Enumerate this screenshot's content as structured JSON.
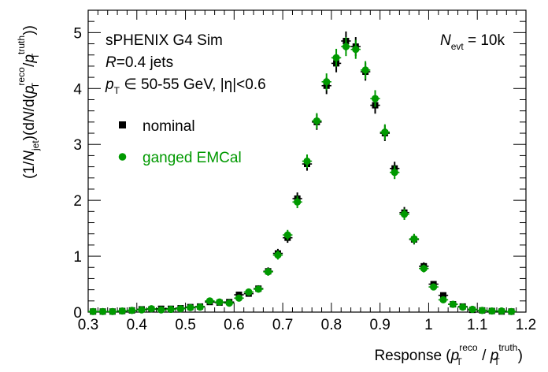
{
  "chart_data": {
    "type": "scatter",
    "title": "",
    "xlabel": "Response (p_T^reco / p_T^truth)",
    "ylabel": "(1/N_jet)(dN/d(p_T^reco/p_T^truth))",
    "xlim": [
      0.3,
      1.2
    ],
    "ylim": [
      0,
      5.4
    ],
    "x_ticks": [
      "0.3",
      "0.4",
      "0.5",
      "0.6",
      "0.7",
      "0.8",
      "0.9",
      "1",
      "1.1",
      "1.2"
    ],
    "y_ticks": [
      "0",
      "1",
      "2",
      "3",
      "4",
      "5"
    ],
    "grid": false,
    "legend_position": "upper-left",
    "annotations": {
      "line1": "sPHENIX G4 Sim",
      "line2_var": "R",
      "line2_rest": "=0.4 jets",
      "line3_var": "p",
      "line3_sub": "T",
      "line3_rest": " ∈ 50-55 GeV, |η|<0.6",
      "nevt_var": "N",
      "nevt_sub": "evt",
      "nevt_rest": " = 10k"
    },
    "axis_text": {
      "xlabel_main": "Response (",
      "xlabel_p1": "p",
      "xlabel_sub1": "T",
      "xlabel_sup1": "reco",
      "xlabel_mid": " / ",
      "xlabel_p2": "p",
      "xlabel_sub2": "T",
      "xlabel_sup2": "truth",
      "xlabel_end": ")",
      "ylabel_a": "(1/",
      "ylabel_N": "N",
      "ylabel_jet": "jet",
      "ylabel_b": ")(d",
      "ylabel_N2": "N",
      "ylabel_c": "/d(",
      "ylabel_p1": "p",
      "ylabel_sup1": "reco",
      "ylabel_sub1": "T",
      "ylabel_d": "/",
      "ylabel_p2": "p",
      "ylabel_sup2": "truth",
      "ylabel_sub2": "T",
      "ylabel_e": "))"
    },
    "series": [
      {
        "name": "nominal",
        "color": "#000000",
        "marker": "square",
        "x": [
          0.31,
          0.33,
          0.35,
          0.37,
          0.39,
          0.41,
          0.43,
          0.45,
          0.47,
          0.49,
          0.51,
          0.53,
          0.55,
          0.57,
          0.59,
          0.61,
          0.63,
          0.65,
          0.67,
          0.69,
          0.71,
          0.73,
          0.75,
          0.77,
          0.79,
          0.81,
          0.83,
          0.85,
          0.87,
          0.89,
          0.91,
          0.93,
          0.95,
          0.97,
          0.99,
          1.01,
          1.03,
          1.05,
          1.07,
          1.09,
          1.11,
          1.13,
          1.15,
          1.17
        ],
        "y": [
          0.01,
          0.01,
          0.01,
          0.02,
          0.03,
          0.05,
          0.05,
          0.06,
          0.06,
          0.07,
          0.09,
          0.1,
          0.18,
          0.17,
          0.18,
          0.31,
          0.33,
          0.42,
          0.73,
          1.05,
          1.33,
          2.03,
          2.65,
          3.4,
          4.05,
          4.45,
          4.85,
          4.75,
          4.3,
          3.7,
          3.2,
          2.57,
          1.78,
          1.3,
          0.82,
          0.5,
          0.3,
          0.14,
          0.1,
          0.04,
          0.03,
          0.02,
          0.01,
          0.01
        ],
        "err": [
          0.02,
          0.02,
          0.02,
          0.02,
          0.02,
          0.03,
          0.03,
          0.03,
          0.03,
          0.03,
          0.03,
          0.04,
          0.04,
          0.04,
          0.04,
          0.05,
          0.05,
          0.06,
          0.07,
          0.08,
          0.09,
          0.11,
          0.12,
          0.14,
          0.15,
          0.16,
          0.17,
          0.17,
          0.16,
          0.15,
          0.14,
          0.12,
          0.1,
          0.09,
          0.07,
          0.05,
          0.04,
          0.03,
          0.03,
          0.02,
          0.02,
          0.02,
          0.02,
          0.02
        ]
      },
      {
        "name": "ganged EMCal",
        "color": "#009900",
        "marker": "circle",
        "x": [
          0.31,
          0.33,
          0.35,
          0.37,
          0.39,
          0.41,
          0.43,
          0.45,
          0.47,
          0.49,
          0.51,
          0.53,
          0.55,
          0.57,
          0.59,
          0.61,
          0.63,
          0.65,
          0.67,
          0.69,
          0.71,
          0.73,
          0.75,
          0.77,
          0.79,
          0.81,
          0.83,
          0.85,
          0.87,
          0.89,
          0.91,
          0.93,
          0.95,
          0.97,
          0.99,
          1.01,
          1.03,
          1.05,
          1.07,
          1.09,
          1.11,
          1.13,
          1.15,
          1.17
        ],
        "y": [
          0.01,
          0.01,
          0.01,
          0.02,
          0.03,
          0.04,
          0.06,
          0.04,
          0.05,
          0.06,
          0.08,
          0.09,
          0.2,
          0.18,
          0.16,
          0.25,
          0.36,
          0.41,
          0.72,
          1.02,
          1.38,
          1.97,
          2.7,
          3.42,
          4.12,
          4.55,
          4.75,
          4.7,
          4.33,
          3.82,
          3.22,
          2.5,
          1.75,
          1.31,
          0.78,
          0.45,
          0.22,
          0.14,
          0.09,
          0.05,
          0.03,
          0.02,
          0.02,
          0.01
        ],
        "err": [
          0.02,
          0.02,
          0.02,
          0.02,
          0.02,
          0.03,
          0.03,
          0.03,
          0.03,
          0.03,
          0.03,
          0.04,
          0.04,
          0.04,
          0.04,
          0.05,
          0.05,
          0.06,
          0.07,
          0.08,
          0.09,
          0.11,
          0.12,
          0.14,
          0.15,
          0.16,
          0.17,
          0.17,
          0.16,
          0.15,
          0.14,
          0.12,
          0.1,
          0.09,
          0.07,
          0.05,
          0.04,
          0.03,
          0.03,
          0.02,
          0.02,
          0.02,
          0.02,
          0.02
        ]
      }
    ]
  }
}
